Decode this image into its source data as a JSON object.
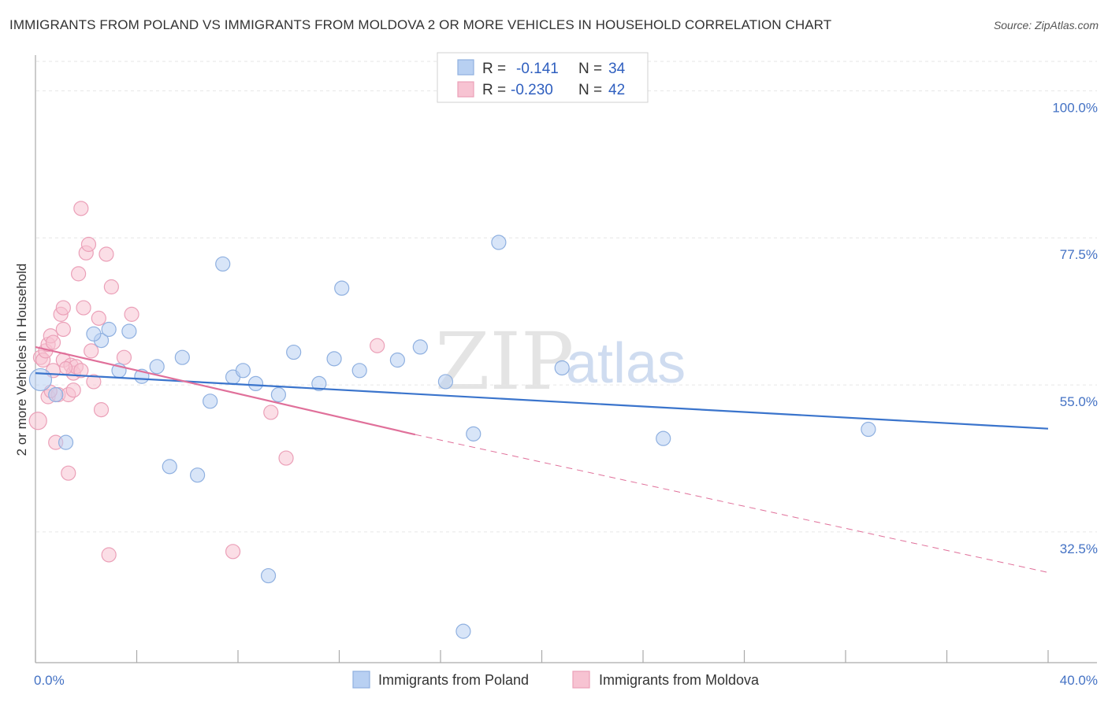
{
  "title": "IMMIGRANTS FROM POLAND VS IMMIGRANTS FROM MOLDOVA 2 OR MORE VEHICLES IN HOUSEHOLD CORRELATION CHART",
  "source": "Source: ZipAtlas.com",
  "watermark": {
    "zip": "ZIP",
    "atlas": "atlas"
  },
  "legend": {
    "poland": {
      "r_label": "R =",
      "r_value": "-0.141",
      "n_label": "N =",
      "n_value": "34"
    },
    "moldova": {
      "r_label": "R =",
      "r_value": "-0.230",
      "n_label": "N =",
      "n_value": "42"
    }
  },
  "bottom_legend": {
    "poland": "Immigrants from Poland",
    "moldova": "Immigrants from Moldova"
  },
  "colors": {
    "poland_fill": "#b8d0f2",
    "poland_stroke": "#8fb0e0",
    "poland_line": "#3a74cc",
    "moldova_fill": "#f7c3d2",
    "moldova_stroke": "#eba0b8",
    "moldova_line": "#e0709a",
    "axis_text": "#4472c4",
    "grid": "#e6e6e6"
  },
  "chart_data": {
    "type": "scatter",
    "title": "IMMIGRANTS FROM POLAND VS IMMIGRANTS FROM MOLDOVA 2 OR MORE VEHICLES IN HOUSEHOLD CORRELATION CHART",
    "xlabel": "",
    "ylabel": "2 or more Vehicles in Household",
    "xlim": [
      0,
      40
    ],
    "ylim": [
      12.5,
      104.5
    ],
    "x_tick_labels": [
      "0.0%",
      "40.0%"
    ],
    "y_ticks": [
      32.5,
      55.0,
      77.5,
      100.0
    ],
    "y_tick_labels": [
      "32.5%",
      "55.0%",
      "77.5%",
      "100.0%"
    ],
    "series": [
      {
        "name": "Immigrants from Poland",
        "points": [
          [
            0.2,
            55.8,
            14
          ],
          [
            0.8,
            53.5,
            9
          ],
          [
            1.2,
            46.2,
            9
          ],
          [
            2.6,
            61.8,
            9
          ],
          [
            2.3,
            62.8,
            9
          ],
          [
            2.9,
            63.5,
            9
          ],
          [
            3.7,
            63.2,
            9
          ],
          [
            3.3,
            57.2,
            9
          ],
          [
            4.2,
            56.3,
            9
          ],
          [
            4.8,
            57.8,
            9
          ],
          [
            5.3,
            42.5,
            9
          ],
          [
            5.8,
            59.2,
            9
          ],
          [
            6.4,
            41.2,
            9
          ],
          [
            6.9,
            52.5,
            9
          ],
          [
            7.4,
            73.5,
            9
          ],
          [
            7.8,
            56.2,
            9
          ],
          [
            8.2,
            57.2,
            9
          ],
          [
            8.7,
            55.2,
            9
          ],
          [
            9.2,
            25.8,
            9
          ],
          [
            9.6,
            53.5,
            9
          ],
          [
            10.2,
            60.0,
            9
          ],
          [
            11.2,
            55.2,
            9
          ],
          [
            11.8,
            59.0,
            9
          ],
          [
            12.1,
            69.8,
            9
          ],
          [
            12.8,
            57.2,
            9
          ],
          [
            14.3,
            58.8,
            9
          ],
          [
            15.2,
            60.8,
            9
          ],
          [
            16.2,
            55.5,
            9
          ],
          [
            16.9,
            17.3,
            9
          ],
          [
            17.3,
            47.5,
            9
          ],
          [
            18.3,
            76.8,
            9
          ],
          [
            20.8,
            57.6,
            9
          ],
          [
            24.8,
            46.8,
            9
          ],
          [
            32.9,
            48.2,
            9
          ]
        ]
      },
      {
        "name": "Immigrants from Moldova",
        "points": [
          [
            0.1,
            49.5,
            11
          ],
          [
            0.2,
            59.2,
            9
          ],
          [
            0.3,
            58.8,
            9
          ],
          [
            0.4,
            60.2,
            9
          ],
          [
            0.5,
            61.2,
            9
          ],
          [
            0.5,
            53.2,
            9
          ],
          [
            0.6,
            62.5,
            9
          ],
          [
            0.7,
            61.5,
            9
          ],
          [
            0.7,
            57.2,
            9
          ],
          [
            0.8,
            46.2,
            9
          ],
          [
            0.9,
            53.5,
            9
          ],
          [
            1.0,
            65.8,
            9
          ],
          [
            1.1,
            58.8,
            9
          ],
          [
            1.1,
            63.5,
            9
          ],
          [
            1.1,
            66.8,
            9
          ],
          [
            1.3,
            53.5,
            9
          ],
          [
            1.3,
            41.5,
            9
          ],
          [
            1.4,
            58.0,
            9
          ],
          [
            1.5,
            56.8,
            9
          ],
          [
            1.5,
            54.2,
            9
          ],
          [
            1.6,
            57.8,
            9
          ],
          [
            1.7,
            72.0,
            9
          ],
          [
            1.8,
            57.2,
            9
          ],
          [
            1.8,
            82.0,
            9
          ],
          [
            1.9,
            66.8,
            9
          ],
          [
            2.0,
            75.2,
            9
          ],
          [
            2.1,
            76.5,
            9
          ],
          [
            2.2,
            60.2,
            9
          ],
          [
            2.3,
            55.5,
            9
          ],
          [
            2.5,
            65.2,
            9
          ],
          [
            2.6,
            51.2,
            9
          ],
          [
            2.8,
            75.0,
            9
          ],
          [
            2.9,
            29.0,
            9
          ],
          [
            3.0,
            70.0,
            9
          ],
          [
            3.5,
            59.2,
            9
          ],
          [
            3.8,
            65.8,
            9
          ],
          [
            7.8,
            29.5,
            9
          ],
          [
            9.3,
            50.8,
            9
          ],
          [
            9.9,
            43.8,
            9
          ],
          [
            13.5,
            61.0,
            9
          ],
          [
            0.6,
            54.0,
            8
          ],
          [
            1.2,
            57.6,
            8
          ]
        ]
      }
    ],
    "trendlines": [
      {
        "series": "Immigrants from Poland",
        "from": [
          0.0,
          56.8
        ],
        "to": [
          40.0,
          48.3
        ],
        "style": "solid"
      },
      {
        "series": "Immigrants from Moldova",
        "from": [
          0.0,
          60.8
        ],
        "to": [
          15.0,
          47.4
        ],
        "style": "solid"
      },
      {
        "series": "Immigrants from Moldova",
        "from": [
          15.0,
          47.4
        ],
        "to": [
          40.0,
          26.3
        ],
        "style": "dashed"
      }
    ]
  }
}
